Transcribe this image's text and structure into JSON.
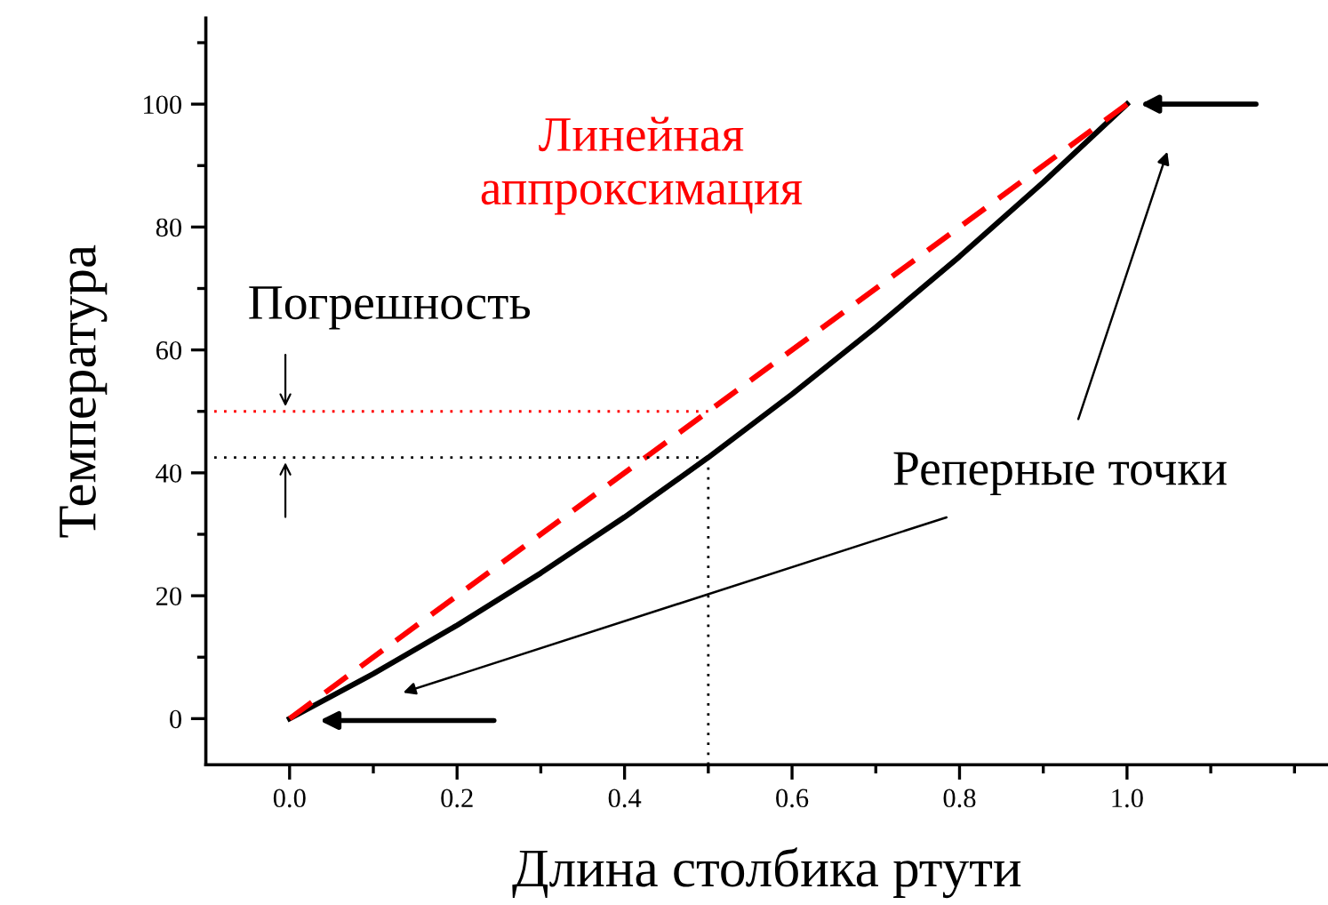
{
  "chart_data": {
    "type": "line",
    "xlabel": "Длина столбика ртути",
    "ylabel": "Температура",
    "xlim": [
      -0.1,
      1.24
    ],
    "ylim": [
      -7.5,
      114
    ],
    "xticks": [
      {
        "value": 0.0,
        "label": "0.0"
      },
      {
        "value": 0.1,
        "label": null
      },
      {
        "value": 0.2,
        "label": "0.2"
      },
      {
        "value": 0.3,
        "label": null
      },
      {
        "value": 0.4,
        "label": "0.4"
      },
      {
        "value": 0.5,
        "label": null
      },
      {
        "value": 0.6,
        "label": "0.6"
      },
      {
        "value": 0.7,
        "label": null
      },
      {
        "value": 0.8,
        "label": "0.8"
      },
      {
        "value": 0.9,
        "label": null
      },
      {
        "value": 1.0,
        "label": "1.0"
      },
      {
        "value": 1.1,
        "label": null
      },
      {
        "value": 1.2,
        "label": null
      }
    ],
    "yticks": [
      0,
      {
        "value": 10,
        "label": null
      },
      20,
      {
        "value": 30,
        "label": null
      },
      40,
      {
        "value": 50,
        "label": null
      },
      60,
      {
        "value": 70,
        "label": null
      },
      80,
      {
        "value": 90,
        "label": null
      },
      100,
      {
        "value": 110,
        "label": null
      }
    ],
    "grid": false,
    "series": [
      {
        "color": "#000000",
        "line_style": "solid",
        "x": [
          0,
          0.1,
          0.2,
          0.3,
          0.4,
          0.5,
          0.6,
          0.7,
          0.8,
          0.9,
          1.0
        ],
        "values": [
          0,
          7.3,
          15.2,
          23.7,
          32.8,
          42.5,
          52.8,
          63.7,
          75.2,
          87.3,
          100
        ]
      },
      {
        "color": "#ff0000",
        "line_style": "dashed",
        "x": [
          0,
          1.0
        ],
        "values": [
          0,
          100
        ]
      },
      {
        "color": "#ff0000",
        "line_style": "dotted",
        "x": [
          -0.09,
          0.5
        ],
        "values": [
          50,
          50
        ]
      },
      {
        "color": "#000000",
        "line_style": "dotted",
        "x": [
          -0.09,
          0.5
        ],
        "values": [
          42.5,
          42.5
        ]
      },
      {
        "color": "#000000",
        "line_style": "dotted",
        "x": [
          0.5,
          0.5
        ],
        "values": [
          -7.5,
          42.5
        ]
      }
    ],
    "annotations": [
      "Линейная\nаппроксимация",
      "Погрешность",
      "Реперные точки"
    ]
  }
}
